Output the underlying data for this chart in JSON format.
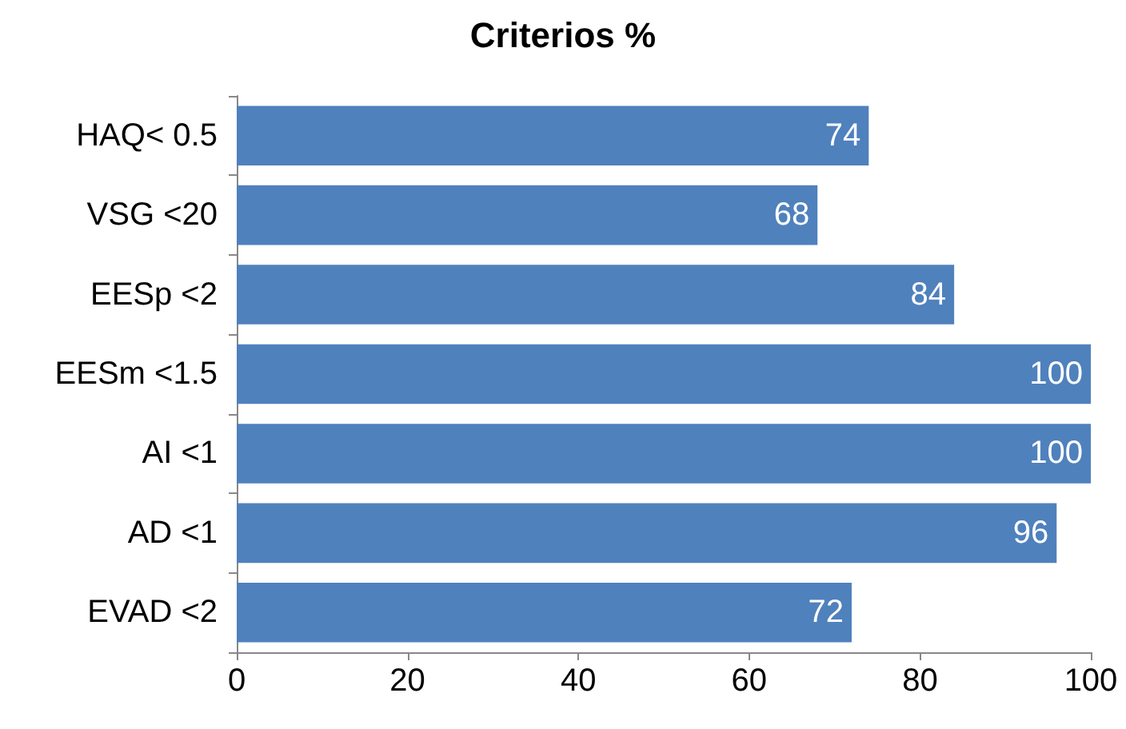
{
  "chart_data": {
    "type": "bar",
    "title": "Criterios %",
    "orientation": "horizontal",
    "categories": [
      "HAQ< 0.5",
      "VSG <20",
      "EESp <2",
      "EESm <1.5",
      "AI <1",
      "AD <1",
      "EVAD <2"
    ],
    "values": [
      74,
      68,
      84,
      100,
      100,
      96,
      72
    ],
    "color": "#4f81bd",
    "xlim": [
      0,
      100
    ],
    "xticks": [
      0,
      20,
      40,
      60,
      80,
      100
    ],
    "data_labels": true
  }
}
